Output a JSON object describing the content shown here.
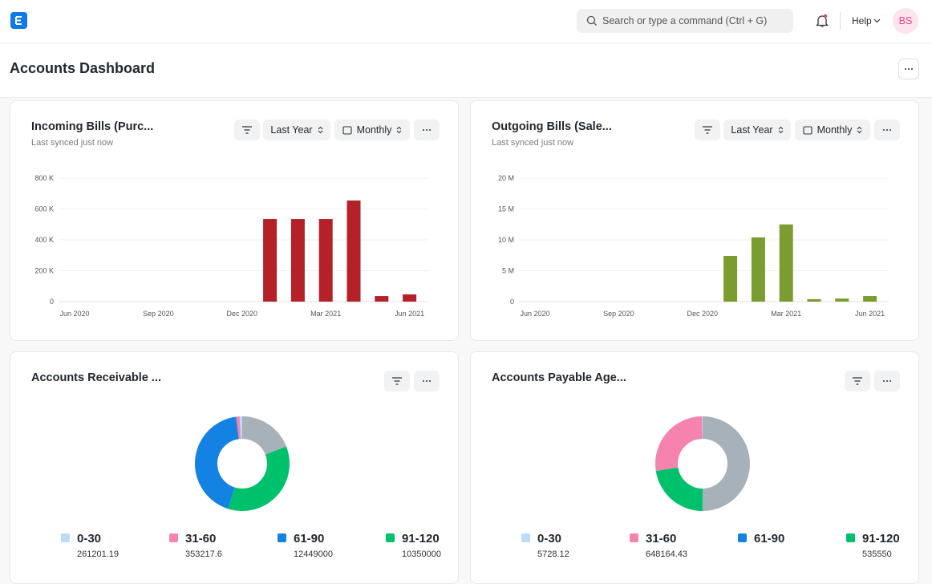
{
  "navbar": {
    "search_placeholder": "Search or type a command (Ctrl + G)",
    "help": "Help",
    "avatar": "BS"
  },
  "header": {
    "title": "Accounts Dashboard"
  },
  "chart_data": [
    {
      "type": "bar",
      "title": "Incoming Bills (Purc...",
      "subtitle": "Last synced just now",
      "controls": [
        "Last Year",
        "Monthly"
      ],
      "categories": [
        "Jun 2020",
        null,
        null,
        "Sep 2020",
        null,
        null,
        "Dec 2020",
        null,
        null,
        "Mar 2021",
        null,
        null,
        "Jun 2021"
      ],
      "values": [
        0,
        0,
        0,
        0,
        0,
        0,
        0,
        535000,
        535000,
        535000,
        655000,
        36000,
        47000
      ],
      "color": "#b52129",
      "ylim": [
        0,
        800000
      ],
      "yticks": [
        0,
        {
          "value": 200000,
          "label": "200 K"
        },
        {
          "value": 400000,
          "label": "400 K"
        },
        {
          "value": 600000,
          "label": "600 K"
        },
        {
          "value": 800000,
          "label": "800 K"
        }
      ],
      "grid": true
    },
    {
      "type": "bar",
      "title": "Outgoing Bills (Sale...",
      "subtitle": "Last synced just now",
      "controls": [
        "Last Year",
        "Monthly"
      ],
      "categories": [
        "Jun 2020",
        null,
        null,
        "Sep 2020",
        null,
        null,
        "Dec 2020",
        null,
        null,
        "Mar 2021",
        null,
        null,
        "Jun 2021"
      ],
      "values": [
        0,
        0,
        0,
        0,
        0,
        0,
        0,
        7400000,
        10400000,
        12500000,
        400000,
        500000,
        900000
      ],
      "color": "#7a9c30",
      "ylim": [
        0,
        20000000
      ],
      "yticks": [
        0,
        {
          "value": 5000000,
          "label": "5 M"
        },
        {
          "value": 10000000,
          "label": "10 M"
        },
        {
          "value": 15000000,
          "label": "15 M"
        },
        {
          "value": 20000000,
          "label": "20 M"
        }
      ],
      "grid": true
    },
    {
      "type": "donut",
      "title": "Accounts Receivable ...",
      "categories": [
        "0-30",
        "31-60",
        "61-90",
        "91-120",
        null
      ],
      "values": [
        261201.19,
        353217.6,
        12449000,
        10350000,
        5500000
      ],
      "colors": [
        "#b9dcf8",
        "#f683ae",
        "#1482e3",
        "#00c16b",
        "#a6b1b9"
      ]
    },
    {
      "type": "donut",
      "title": "Accounts Payable Age...",
      "categories": [
        "0-30",
        "31-60",
        "61-90",
        "91-120",
        null
      ],
      "values": [
        5728.12,
        648164.43,
        null,
        535550,
        1190000
      ],
      "colors": [
        "#b9dcf8",
        "#f683ae",
        "#1482e3",
        "#00c16b",
        "#a6b1b9"
      ]
    }
  ]
}
